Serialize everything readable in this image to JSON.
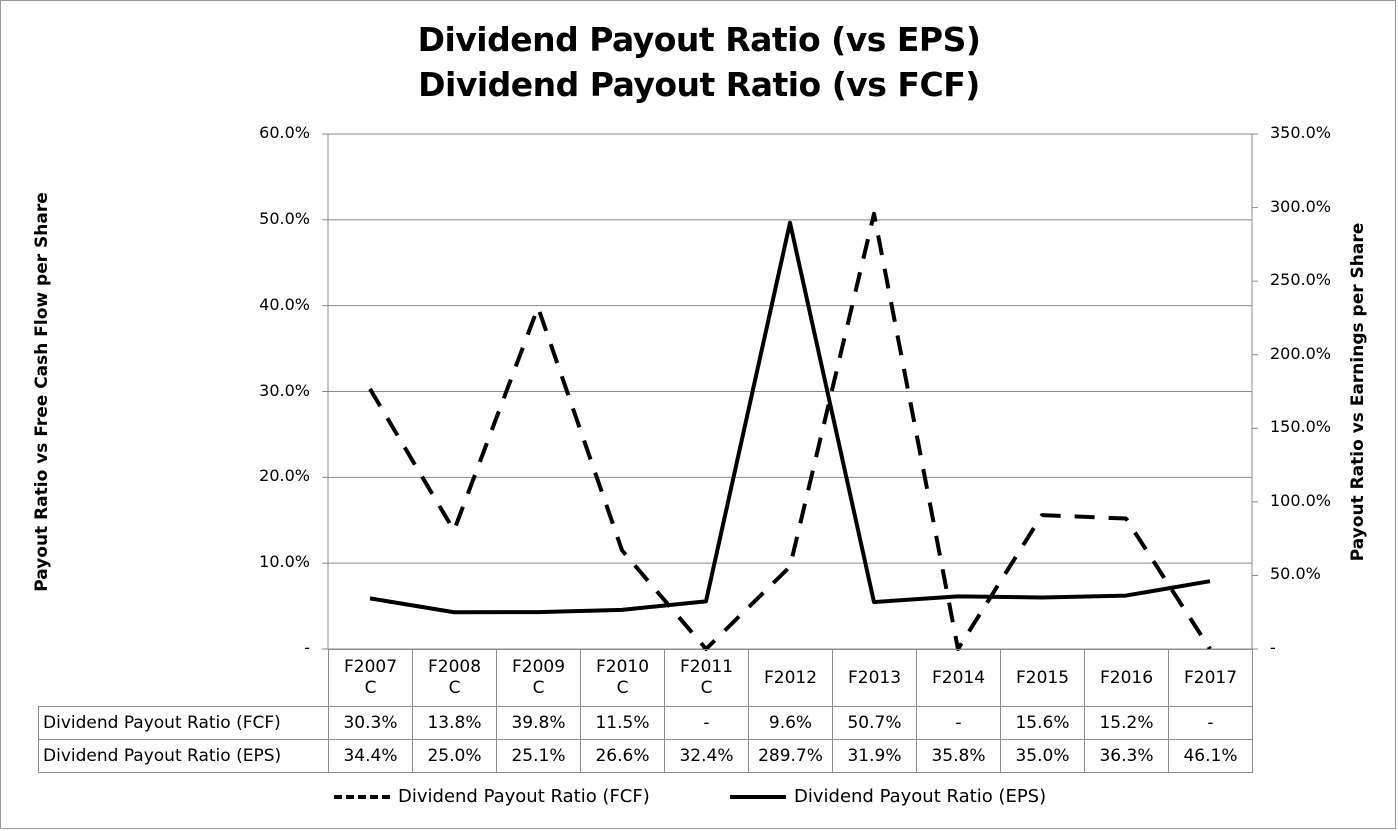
{
  "chart_data": {
    "type": "line",
    "title": "Dividend Payout Ratio (vs EPS)",
    "subtitle": "Dividend Payout Ratio (vs FCF)",
    "categories": [
      [
        "F2007",
        "C"
      ],
      [
        "F2008",
        "C"
      ],
      [
        "F2009",
        "C"
      ],
      [
        "F2010",
        "C"
      ],
      [
        "F2011",
        "C"
      ],
      [
        "F2012"
      ],
      [
        "F2013"
      ],
      [
        "F2014"
      ],
      [
        "F2015"
      ],
      [
        "F2016"
      ],
      [
        "F2017"
      ]
    ],
    "y_left": {
      "label": "Payout Ratio vs Free Cash Flow per Share",
      "ylim": [
        0,
        60
      ],
      "ticks": [
        "-",
        "10.0%",
        "20.0%",
        "30.0%",
        "40.0%",
        "50.0%",
        "60.0%"
      ]
    },
    "y_right": {
      "label": "Payout Ratio vs Earnings per Share",
      "ylim": [
        0,
        350
      ],
      "ticks": [
        "-",
        "50.0%",
        "100.0%",
        "150.0%",
        "200.0%",
        "250.0%",
        "300.0%",
        "350.0%"
      ]
    },
    "grid": true,
    "legend_position": "bottom",
    "series": [
      {
        "name": "Dividend Payout Ratio (FCF)",
        "axis": "left",
        "style": "dashed",
        "color": "#000000",
        "values": [
          30.3,
          13.8,
          39.8,
          11.5,
          0,
          9.6,
          50.7,
          0,
          15.6,
          15.2,
          0
        ],
        "labels": [
          "30.3%",
          "13.8%",
          "39.8%",
          "11.5%",
          "-",
          "9.6%",
          "50.7%",
          "-",
          "15.6%",
          "15.2%",
          "-"
        ]
      },
      {
        "name": "Dividend Payout Ratio (EPS)",
        "axis": "right",
        "style": "solid",
        "color": "#000000",
        "values": [
          34.4,
          25.0,
          25.1,
          26.6,
          32.4,
          289.7,
          31.9,
          35.8,
          35.0,
          36.3,
          46.1
        ],
        "labels": [
          "34.4%",
          "25.0%",
          "25.1%",
          "26.6%",
          "32.4%",
          "289.7%",
          "31.9%",
          "35.8%",
          "35.0%",
          "36.3%",
          "46.1%"
        ]
      }
    ]
  }
}
